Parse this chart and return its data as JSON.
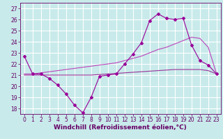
{
  "background_color": "#c8eaea",
  "grid_color": "#ffffff",
  "xlabel": "Windchill (Refroidissement éolien,°C)",
  "xlim": [
    -0.5,
    23.5
  ],
  "ylim": [
    17.5,
    27.5
  ],
  "yticks": [
    18,
    19,
    20,
    21,
    22,
    23,
    24,
    25,
    26,
    27
  ],
  "xticks": [
    0,
    1,
    2,
    3,
    4,
    5,
    6,
    7,
    8,
    9,
    10,
    11,
    12,
    13,
    14,
    15,
    16,
    17,
    18,
    19,
    20,
    21,
    22,
    23
  ],
  "hours": [
    0,
    1,
    2,
    3,
    4,
    5,
    6,
    7,
    8,
    9,
    10,
    11,
    12,
    13,
    14,
    15,
    16,
    17,
    18,
    19,
    20,
    21,
    22,
    23
  ],
  "windchill": [
    22.7,
    21.1,
    21.1,
    20.7,
    20.1,
    19.3,
    18.3,
    17.6,
    19.0,
    20.9,
    21.0,
    21.1,
    22.0,
    22.9,
    23.9,
    25.9,
    26.5,
    26.1,
    26.0,
    26.1,
    23.7,
    22.3,
    21.9,
    21.1
  ],
  "line2": [
    21.1,
    21.1,
    21.2,
    21.3,
    21.4,
    21.5,
    21.6,
    21.7,
    21.8,
    21.9,
    22.0,
    22.1,
    22.3,
    22.5,
    22.7,
    23.0,
    23.3,
    23.5,
    23.8,
    24.1,
    24.4,
    24.3,
    23.5,
    21.1
  ],
  "line3": [
    21.0,
    21.0,
    21.0,
    21.0,
    21.0,
    21.0,
    21.0,
    21.0,
    21.0,
    21.05,
    21.1,
    21.15,
    21.2,
    21.25,
    21.3,
    21.35,
    21.4,
    21.45,
    21.5,
    21.5,
    21.5,
    21.5,
    21.4,
    21.1
  ],
  "line_color_zigzag": "#990099",
  "line_color_2": "#bb44bb",
  "line_color_3": "#993399",
  "xlabel_fontsize": 6.5,
  "tick_fontsize": 5.5
}
